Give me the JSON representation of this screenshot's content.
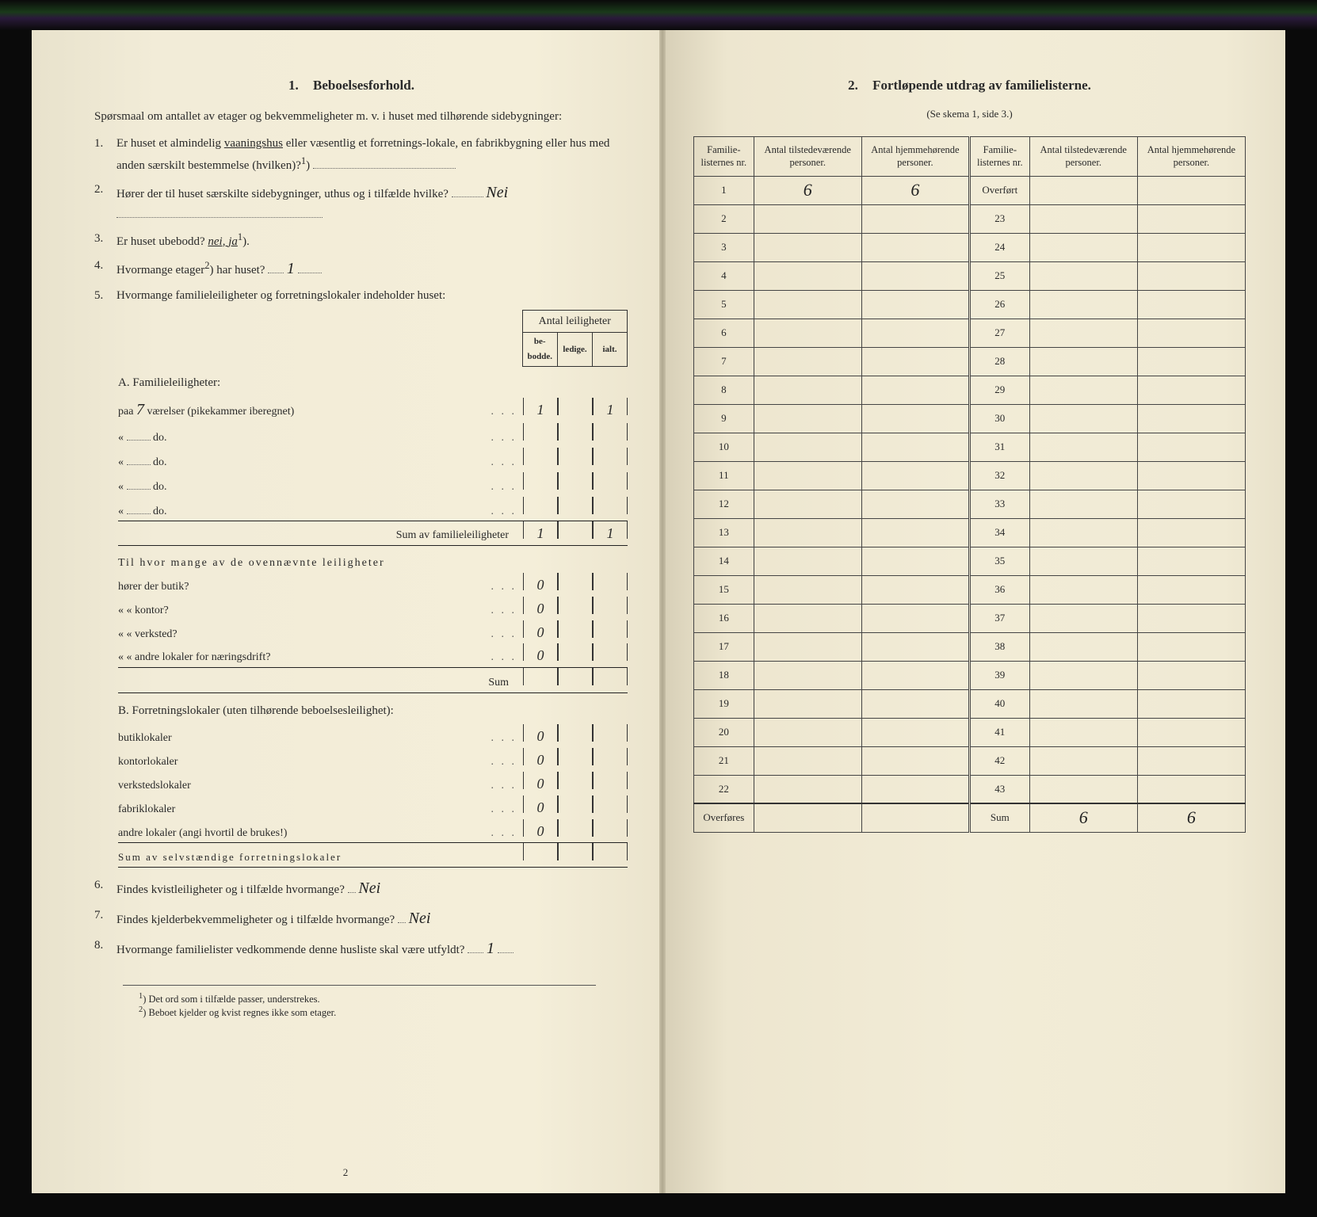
{
  "left": {
    "section_number": "1.",
    "section_title": "Beboelsesforhold.",
    "intro": "Spørsmaal om antallet av etager og bekvemmeligheter m. v. i huset med tilhørende sidebygninger:",
    "q1": {
      "num": "1.",
      "text_a": "Er huset et almindelig ",
      "underlined": "vaaningshus",
      "text_b": " eller væsentlig et forretnings-lokale, en fabrikbygning eller hus med anden særskilt bestemmelse (hvilken)?",
      "sup": "1",
      "tail": ")",
      "value": ""
    },
    "q2": {
      "num": "2.",
      "text": "Hører der til huset særskilte sidebygninger, uthus og i tilfælde hvilke?",
      "value": "Nei"
    },
    "q3": {
      "num": "3.",
      "text": "Er huset ubebodd?",
      "options": "nei,  ja",
      "sup": "1",
      "tail": ")."
    },
    "q4": {
      "num": "4.",
      "text_a": "Hvormange etager",
      "sup": "2",
      "text_b": ") har huset?",
      "value": "1"
    },
    "q5": {
      "num": "5.",
      "text": "Hvormange familieleiligheter og forretningslokaler indeholder huset:"
    },
    "table5": {
      "header_top": "Antal leiligheter",
      "header_cells": [
        "be-\nbodde.",
        "ledige.",
        "ialt."
      ],
      "sectionA": {
        "title": "A. Familieleiligheter:",
        "rows": [
          {
            "label_pre": "paa ",
            "label_hand": "7",
            "label_post": " værelser (pikekammer iberegnet)",
            "cells": [
              "1",
              "",
              "1"
            ]
          },
          {
            "label_pre": "«   ",
            "label_post": "do.",
            "cells": [
              "",
              "",
              ""
            ]
          },
          {
            "label_pre": "«   ",
            "label_post": "do.",
            "cells": [
              "",
              "",
              ""
            ]
          },
          {
            "label_pre": "«   ",
            "label_post": "do.",
            "cells": [
              "",
              "",
              ""
            ]
          },
          {
            "label_pre": "«   ",
            "label_post": "do.",
            "cells": [
              "",
              "",
              ""
            ]
          }
        ],
        "sum_label": "Sum av familieleiligheter",
        "sum_cells": [
          "1",
          "",
          "1"
        ]
      },
      "sectionMid": {
        "intro": "Til hvor mange av de ovennævnte leiligheter",
        "rows": [
          {
            "label": "hører der butik?",
            "cells": [
              "0",
              "",
              ""
            ]
          },
          {
            "label": "«     «   kontor?",
            "cells": [
              "0",
              "",
              ""
            ]
          },
          {
            "label": "«     «   verksted?",
            "cells": [
              "0",
              "",
              ""
            ]
          },
          {
            "label": "«     «   andre lokaler for næringsdrift?",
            "cells": [
              "0",
              "",
              ""
            ]
          }
        ],
        "sum_label": "Sum",
        "sum_cells": [
          "",
          "",
          ""
        ]
      },
      "sectionB": {
        "title": "B. Forretningslokaler (uten tilhørende beboelsesleilighet):",
        "rows": [
          {
            "label": "butiklokaler",
            "cells": [
              "0",
              "",
              ""
            ]
          },
          {
            "label": "kontorlokaler",
            "cells": [
              "0",
              "",
              ""
            ]
          },
          {
            "label": "verkstedslokaler",
            "cells": [
              "0",
              "",
              ""
            ]
          },
          {
            "label": "fabriklokaler",
            "cells": [
              "0",
              "",
              ""
            ]
          },
          {
            "label": "andre lokaler (angi hvortil de brukes!)",
            "cells": [
              "0",
              "",
              ""
            ]
          }
        ],
        "sum_label": "Sum av selvstændige forretningslokaler",
        "sum_cells": [
          "",
          "",
          ""
        ]
      }
    },
    "q6": {
      "num": "6.",
      "text": "Findes kvistleiligheter og i tilfælde hvormange?",
      "value": "Nei"
    },
    "q7": {
      "num": "7.",
      "text": "Findes kjelderbekvemmeligheter og i tilfælde hvormange?",
      "value": "Nei"
    },
    "q8": {
      "num": "8.",
      "text": "Hvormange familielister vedkommende denne husliste skal være utfyldt?",
      "value": "1"
    },
    "footnotes": [
      {
        "sup": "1",
        "text": ") Det ord som i tilfælde passer, understrekes."
      },
      {
        "sup": "2",
        "text": ") Beboet kjelder og kvist regnes ikke som etager."
      }
    ],
    "page_number": "2"
  },
  "right": {
    "section_number": "2.",
    "section_title": "Fortløpende utdrag av familielisterne.",
    "subtitle": "(Se skema 1, side 3.)",
    "table": {
      "headers": [
        "Familie-\nlisternes\nnr.",
        "Antal\ntilstedeværende\npersoner.",
        "Antal\nhjemmehørende\npersoner.",
        "Familie-\nlisternes\nnr.",
        "Antal\ntilstedeværende\npersoner.",
        "Antal\nhjemmehørende\npersoner."
      ],
      "left_rows": [
        {
          "nr": "1",
          "a": "6",
          "b": "6"
        },
        {
          "nr": "2",
          "a": "",
          "b": ""
        },
        {
          "nr": "3",
          "a": "",
          "b": ""
        },
        {
          "nr": "4",
          "a": "",
          "b": ""
        },
        {
          "nr": "5",
          "a": "",
          "b": ""
        },
        {
          "nr": "6",
          "a": "",
          "b": ""
        },
        {
          "nr": "7",
          "a": "",
          "b": ""
        },
        {
          "nr": "8",
          "a": "",
          "b": ""
        },
        {
          "nr": "9",
          "a": "",
          "b": ""
        },
        {
          "nr": "10",
          "a": "",
          "b": ""
        },
        {
          "nr": "11",
          "a": "",
          "b": ""
        },
        {
          "nr": "12",
          "a": "",
          "b": ""
        },
        {
          "nr": "13",
          "a": "",
          "b": ""
        },
        {
          "nr": "14",
          "a": "",
          "b": ""
        },
        {
          "nr": "15",
          "a": "",
          "b": ""
        },
        {
          "nr": "16",
          "a": "",
          "b": ""
        },
        {
          "nr": "17",
          "a": "",
          "b": ""
        },
        {
          "nr": "18",
          "a": "",
          "b": ""
        },
        {
          "nr": "19",
          "a": "",
          "b": ""
        },
        {
          "nr": "20",
          "a": "",
          "b": ""
        },
        {
          "nr": "21",
          "a": "",
          "b": ""
        },
        {
          "nr": "22",
          "a": "",
          "b": ""
        }
      ],
      "right_first_label": "Overført",
      "right_rows": [
        {
          "nr": "Overført",
          "a": "",
          "b": ""
        },
        {
          "nr": "23",
          "a": "",
          "b": ""
        },
        {
          "nr": "24",
          "a": "",
          "b": ""
        },
        {
          "nr": "25",
          "a": "",
          "b": ""
        },
        {
          "nr": "26",
          "a": "",
          "b": ""
        },
        {
          "nr": "27",
          "a": "",
          "b": ""
        },
        {
          "nr": "28",
          "a": "",
          "b": ""
        },
        {
          "nr": "29",
          "a": "",
          "b": ""
        },
        {
          "nr": "30",
          "a": "",
          "b": ""
        },
        {
          "nr": "31",
          "a": "",
          "b": ""
        },
        {
          "nr": "32",
          "a": "",
          "b": ""
        },
        {
          "nr": "33",
          "a": "",
          "b": ""
        },
        {
          "nr": "34",
          "a": "",
          "b": ""
        },
        {
          "nr": "35",
          "a": "",
          "b": ""
        },
        {
          "nr": "36",
          "a": "",
          "b": ""
        },
        {
          "nr": "37",
          "a": "",
          "b": ""
        },
        {
          "nr": "38",
          "a": "",
          "b": ""
        },
        {
          "nr": "39",
          "a": "",
          "b": ""
        },
        {
          "nr": "40",
          "a": "",
          "b": ""
        },
        {
          "nr": "41",
          "a": "",
          "b": ""
        },
        {
          "nr": "42",
          "a": "",
          "b": ""
        },
        {
          "nr": "43",
          "a": "",
          "b": ""
        }
      ],
      "footer_left_label": "Overføres",
      "footer_right_label": "Sum",
      "footer_right_cells": [
        "6",
        "6"
      ]
    }
  },
  "colors": {
    "paper": "#f2ecd7",
    "ink": "#2a2a2a",
    "hand": "#222222",
    "border": "#444444",
    "background": "#0a0a0a"
  }
}
